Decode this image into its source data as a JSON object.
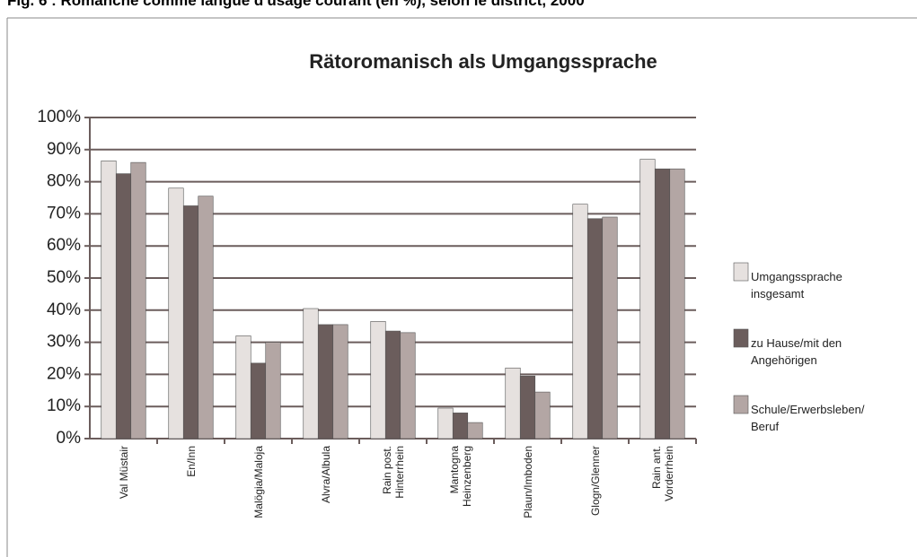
{
  "header": "Fig. 6 : Romanche comme langue d'usage courant (en %), selon le district, 2000",
  "chart_data": {
    "type": "bar",
    "title": "Rätoromanisch als Umgangssprache",
    "categories": [
      "Val Müstair",
      "En/Inn",
      "Malögia/Maloja",
      "Alvra/Albula",
      "Rain post.\nHinterrhein",
      "Mantogna\nHeinzenberg",
      "Plaun/Imboden",
      "Glogn/Glenner",
      "Rain ant.\nVorderrhein"
    ],
    "series": [
      {
        "name": "Umgangssprache\ninsgesamt",
        "color": "#e6e1df",
        "values": [
          86.5,
          78,
          32,
          40.5,
          36.5,
          9.5,
          22,
          73,
          87
        ]
      },
      {
        "name": "zu Hause/mit den\nAngehörigen",
        "color": "#6b5d5c",
        "values": [
          82.5,
          72.5,
          23.5,
          35.5,
          33.5,
          8,
          19.5,
          68.5,
          84
        ]
      },
      {
        "name": "Schule/Erwerbsleben/\nBeruf",
        "color": "#b3a6a4",
        "values": [
          86,
          75.5,
          30,
          35.5,
          33,
          5,
          14.5,
          69,
          84
        ]
      }
    ],
    "ylim": [
      0,
      100
    ],
    "yticks": [
      {
        "value": 0,
        "label": "0%"
      },
      {
        "value": 10,
        "label": "10%"
      },
      {
        "value": 20,
        "label": "20%"
      },
      {
        "value": 30,
        "label": "30%"
      },
      {
        "value": 40,
        "label": "40%"
      },
      {
        "value": 50,
        "label": "50%"
      },
      {
        "value": 60,
        "label": "60%"
      },
      {
        "value": 70,
        "label": "70%"
      },
      {
        "value": 80,
        "label": "80%"
      },
      {
        "value": 90,
        "label": "90%"
      },
      {
        "value": 100,
        "label": "100%"
      }
    ],
    "grid": true,
    "legend": "right"
  }
}
